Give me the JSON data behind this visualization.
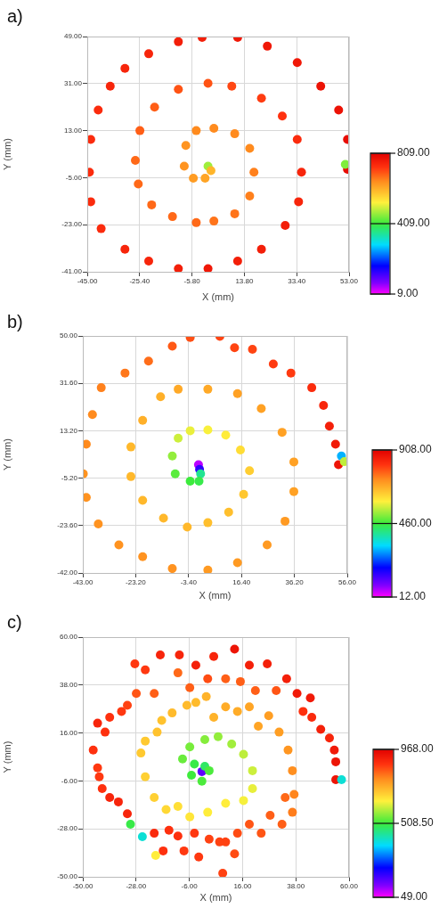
{
  "chart_data": [
    {
      "type": "scatter",
      "title": "a)",
      "xlabel": "X (mm)",
      "ylabel": "Y (mm)",
      "marker": "circle",
      "grid": true,
      "xlim": [
        -45,
        53
      ],
      "ylim": [
        -41,
        49
      ],
      "xticks": [
        {
          "value": -45,
          "label": "-45.00"
        },
        {
          "value": -25.4,
          "label": "-25.40"
        },
        {
          "value": -5.8,
          "label": "-5.80"
        },
        {
          "value": 13.8,
          "label": "13.80"
        },
        {
          "value": 33.4,
          "label": "33.40"
        },
        {
          "value": 53,
          "label": "53.00"
        }
      ],
      "yticks": [
        {
          "value": -41,
          "label": "-41.00"
        },
        {
          "value": -23,
          "label": "-23.00"
        },
        {
          "value": -5,
          "label": "-5.00"
        },
        {
          "value": 13,
          "label": "13.00"
        },
        {
          "value": 31,
          "label": "31.00"
        },
        {
          "value": 49,
          "label": "49.00"
        }
      ],
      "clim": [
        9,
        809
      ],
      "cticks": [
        {
          "value": 9,
          "label": "9.00"
        },
        {
          "value": 409,
          "label": "409.00"
        },
        {
          "value": 809,
          "label": "809.00"
        }
      ],
      "x": [
        0.2,
        1.3,
        -0.9,
        -5.3,
        -8.7,
        -8.1,
        -4.2,
        2.4,
        10.2,
        15.8,
        17.4,
        15.8,
        10.2,
        2.4,
        -4.2,
        -13.1,
        -20.9,
        -25.9,
        -27.0,
        -25.3,
        -19.8,
        -10.9,
        0.2,
        9.1,
        20.2,
        28.0,
        33.6,
        35.2,
        34.1,
        29.1,
        20.2,
        11.3,
        0.2,
        -10.9,
        -22.0,
        -30.9,
        -39.8,
        -43.7,
        -44.2,
        -43.7,
        -40.9,
        -36.4,
        -30.9,
        -22.0,
        -10.9,
        -2.0,
        11.3,
        22.4,
        33.6,
        42.4,
        49.1,
        52.4,
        52.4,
        51.6
      ],
      "values": [
        -0.6,
        -2.3,
        -5.2,
        -5.2,
        -0.6,
        7.3,
        13.0,
        13.9,
        11.8,
        6.2,
        -2.9,
        -12.0,
        -18.8,
        -21.6,
        -22.2,
        -19.9,
        -15.4,
        -7.4,
        1.6,
        13.0,
        22.0,
        28.8,
        31.1,
        30.0,
        25.4,
        18.6,
        9.6,
        -2.9,
        -14.2,
        -23.3,
        -32.4,
        -36.9,
        -39.8,
        -39.8,
        -36.9,
        -32.4,
        -24.5,
        -14.2,
        -2.9,
        9.6,
        20.9,
        30.0,
        36.8,
        42.4,
        47.0,
        48.7,
        48.7,
        45.3,
        39.0,
        30.0,
        20.9,
        9.6,
        -1.8,
        0.1
      ],
      "cvalues": [
        470,
        600,
        620,
        630,
        640,
        640,
        650,
        650,
        650,
        650,
        660,
        660,
        670,
        670,
        680,
        680,
        680,
        680,
        680,
        690,
        690,
        700,
        700,
        710,
        720,
        730,
        740,
        750,
        750,
        760,
        760,
        760,
        770,
        760,
        750,
        750,
        740,
        740,
        740,
        740,
        740,
        750,
        750,
        750,
        760,
        760,
        770,
        770,
        770,
        780,
        780,
        790,
        790,
        450
      ]
    },
    {
      "type": "scatter",
      "title": "b)",
      "xlabel": "X (mm)",
      "ylabel": "Y (mm)",
      "marker": "circle",
      "grid": true,
      "xlim": [
        -43,
        56
      ],
      "ylim": [
        -42,
        50
      ],
      "xticks": [
        {
          "value": -43,
          "label": "-43.00"
        },
        {
          "value": -23.2,
          "label": "-23.20"
        },
        {
          "value": -3.4,
          "label": "-3.40"
        },
        {
          "value": 16.4,
          "label": "16.40"
        },
        {
          "value": 36.2,
          "label": "36.20"
        },
        {
          "value": 56,
          "label": "56.00"
        }
      ],
      "yticks": [
        {
          "value": -42,
          "label": "-42.00"
        },
        {
          "value": -23.6,
          "label": "-23.60"
        },
        {
          "value": -5.2,
          "label": "-5.20"
        },
        {
          "value": 13.2,
          "label": "13.20"
        },
        {
          "value": 31.6,
          "label": "31.60"
        },
        {
          "value": 50,
          "label": "50.00"
        }
      ],
      "clim": [
        12,
        908
      ],
      "cticks": [
        {
          "value": 12,
          "label": "12.00"
        },
        {
          "value": 460,
          "label": "460.00"
        },
        {
          "value": 908,
          "label": "908.00"
        }
      ],
      "x": [
        0.3,
        0.7,
        1.1,
        0.5,
        -2.8,
        -8.4,
        -9.5,
        -7.3,
        -2.8,
        3.8,
        10.5,
        16.0,
        19.4,
        17.2,
        11.6,
        3.8,
        -3.9,
        -12.8,
        -20.6,
        -25.0,
        -25.0,
        -20.6,
        -13.9,
        -7.3,
        3.8,
        14.9,
        23.8,
        31.6,
        36.0,
        36.0,
        32.7,
        26.0,
        14.9,
        3.8,
        -9.5,
        -20.6,
        -29.5,
        -37.2,
        -41.7,
        -42.8,
        -41.7,
        -39.4,
        -36.1,
        -27.2,
        -18.4,
        -9.5,
        -2.8,
        8.3,
        13.8,
        20.5,
        28.3,
        34.9,
        42.7,
        47.1,
        49.3,
        51.6,
        52.7,
        53.8,
        54.9
      ],
      "values": [
        0.0,
        -1.8,
        -3.5,
        -6.4,
        -6.4,
        -3.5,
        3.4,
        10.3,
        13.2,
        13.5,
        11.5,
        5.7,
        -2.3,
        -11.5,
        -18.4,
        -22.5,
        -24.2,
        -20.7,
        -13.8,
        -4.6,
        6.9,
        17.2,
        26.4,
        29.3,
        29.3,
        27.6,
        21.8,
        12.6,
        1.1,
        -10.4,
        -21.9,
        -31.1,
        -38.0,
        -40.9,
        -40.3,
        -35.7,
        -31.1,
        -23.0,
        -12.7,
        -3.5,
        8.0,
        19.5,
        29.9,
        35.6,
        40.2,
        46.0,
        49.4,
        49.8,
        45.4,
        44.8,
        39.1,
        35.6,
        29.9,
        23.0,
        15.0,
        8.0,
        0.0,
        3.4,
        1.2
      ],
      "cvalues": [
        50,
        150,
        400,
        450,
        460,
        480,
        520,
        560,
        580,
        590,
        600,
        620,
        640,
        650,
        660,
        660,
        670,
        670,
        670,
        670,
        670,
        680,
        680,
        690,
        690,
        700,
        700,
        700,
        700,
        700,
        710,
        710,
        710,
        710,
        720,
        720,
        720,
        720,
        720,
        720,
        730,
        730,
        740,
        750,
        760,
        780,
        790,
        800,
        800,
        800,
        810,
        810,
        830,
        840,
        850,
        860,
        870,
        300,
        550
      ]
    },
    {
      "type": "scatter",
      "title": "c)",
      "xlabel": "X (mm)",
      "ylabel": "Y (mm)",
      "marker": "circle",
      "grid": true,
      "xlim": [
        -50,
        60
      ],
      "ylim": [
        -50,
        60
      ],
      "xticks": [
        {
          "value": -50,
          "label": "-50.00"
        },
        {
          "value": -28,
          "label": "-28.00"
        },
        {
          "value": -6,
          "label": "-6.00"
        },
        {
          "value": 16,
          "label": "16.00"
        },
        {
          "value": 38,
          "label": "38.00"
        },
        {
          "value": 60,
          "label": "60.00"
        }
      ],
      "yticks": [
        {
          "value": -50,
          "label": "-50.00"
        },
        {
          "value": -28,
          "label": "-28.00"
        },
        {
          "value": -6,
          "label": "-6.00"
        },
        {
          "value": 16,
          "label": "16.00"
        },
        {
          "value": 38,
          "label": "38.00"
        },
        {
          "value": 60,
          "label": "60.00"
        }
      ],
      "clim": [
        49,
        968
      ],
      "cticks": [
        {
          "value": 49,
          "label": "49.00"
        },
        {
          "value": 508.5,
          "label": "508.50"
        },
        {
          "value": 968,
          "label": "968.00"
        }
      ],
      "x": [
        -0.8,
        0.4,
        -3.9,
        -5.1,
        -0.8,
        2.2,
        -8.8,
        -5.8,
        0.4,
        5.9,
        11.5,
        16.4,
        20.1,
        20.1,
        16.4,
        9.0,
        1.6,
        -5.8,
        -10.7,
        -15.6,
        -20.5,
        -24.2,
        -26.0,
        -24.2,
        -19.3,
        -17.4,
        -13.1,
        -7.0,
        -3.3,
        1.0,
        4.1,
        9.0,
        13.9,
        18.8,
        22.5,
        26.8,
        31.1,
        34.8,
        36.6,
        37.3,
        36.6,
        33.6,
        32.3,
        27.4,
        23.7,
        18.8,
        13.9,
        12.7,
        9.0,
        7.8,
        6.5,
        2.2,
        -2.1,
        -3.9,
        -8.2,
        -10.7,
        -14.4,
        -16.8,
        -20.5,
        -19.9,
        -25.4,
        -30.3,
        -31.6,
        -35.3,
        -38.9,
        -42.0,
        -43.2,
        -43.9,
        -45.7,
        -43.9,
        -40.8,
        -38.9,
        -34.0,
        -31.6,
        -28.5,
        -27.9,
        -24.2,
        -20.5,
        -18.0,
        -10.7,
        -10.1,
        -5.8,
        -3.3,
        1.6,
        4.1,
        9.0,
        12.7,
        15.1,
        18.8,
        21.3,
        26.2,
        29.9,
        34.2,
        38.5,
        41.0,
        44.0,
        44.6,
        48.3,
        51.9,
        53.9,
        54.5,
        54.5,
        56.9
      ],
      "values": [
        -1.7,
        0.7,
        1.7,
        -3.4,
        -6.1,
        -1.3,
        4.1,
        9.6,
        13.0,
        14.3,
        10.9,
        6.2,
        -1.3,
        -9.5,
        -15.0,
        -16.3,
        -20.4,
        -22.5,
        -17.7,
        -19.1,
        -13.6,
        -4.1,
        6.8,
        12.3,
        16.4,
        21.8,
        25.2,
        28.7,
        30.0,
        32.7,
        23.2,
        28.0,
        25.9,
        28.0,
        19.1,
        23.9,
        16.4,
        8.2,
        -1.3,
        -12.2,
        -20.4,
        -13.6,
        -25.9,
        -21.8,
        -30.0,
        -25.9,
        -30.0,
        -39.5,
        -34.0,
        -48.4,
        -34.0,
        -32.7,
        -40.9,
        -30.0,
        -38.1,
        -31.3,
        -28.6,
        -38.1,
        -30.0,
        -40.2,
        -31.6,
        -25.9,
        -21.1,
        -15.6,
        -13.6,
        -9.5,
        -4.1,
        0.0,
        8.2,
        20.5,
        16.4,
        23.2,
        25.9,
        28.7,
        47.7,
        34.1,
        45.0,
        34.1,
        51.8,
        43.6,
        51.8,
        36.8,
        47.1,
        40.9,
        51.1,
        40.9,
        54.5,
        39.6,
        47.1,
        35.5,
        47.7,
        35.5,
        40.9,
        34.1,
        25.9,
        32.1,
        23.2,
        17.7,
        13.7,
        8.2,
        2.8,
        -5.4,
        -5.4
      ],
      "cvalues": [
        150,
        480,
        500,
        510,
        520,
        520,
        540,
        550,
        560,
        570,
        580,
        600,
        610,
        630,
        640,
        650,
        650,
        660,
        670,
        680,
        690,
        690,
        700,
        700,
        710,
        710,
        720,
        720,
        720,
        730,
        730,
        740,
        740,
        750,
        750,
        760,
        760,
        770,
        780,
        790,
        800,
        820,
        830,
        830,
        840,
        840,
        850,
        850,
        860,
        860,
        860,
        860,
        870,
        870,
        870,
        880,
        880,
        880,
        890,
        650,
        400,
        500,
        900,
        900,
        900,
        880,
        870,
        870,
        880,
        900,
        880,
        880,
        870,
        860,
        870,
        840,
        870,
        830,
        900,
        820,
        900,
        830,
        910,
        850,
        900,
        830,
        930,
        830,
        910,
        830,
        910,
        840,
        910,
        920,
        880,
        920,
        890,
        910,
        900,
        920,
        930,
        930,
        400
      ]
    }
  ]
}
